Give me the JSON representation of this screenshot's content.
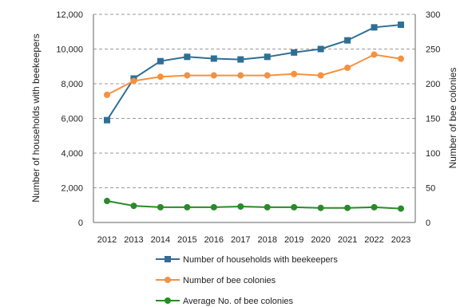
{
  "chart_data": {
    "type": "line",
    "title": "",
    "xlabel": "",
    "ylabel_left": "Number of households with beekeepers",
    "ylabel_right": "Number of bee colonies",
    "ylim_left": [
      0,
      12000
    ],
    "ylim_right": [
      0,
      300
    ],
    "yticks_left": [
      0,
      2000,
      4000,
      6000,
      8000,
      10000,
      12000
    ],
    "yticks_right": [
      0,
      50,
      100,
      150,
      200,
      250,
      300
    ],
    "yticks_left_labels": [
      "0",
      "2,000",
      "4,000",
      "6,000",
      "8,000",
      "10,000",
      "12,000"
    ],
    "yticks_right_labels": [
      "0",
      "50",
      "100",
      "150",
      "200",
      "250",
      "300"
    ],
    "grid": "horizontal-dashed",
    "legend_position": "bottom",
    "x": [
      "2012",
      "2013",
      "2014",
      "2015",
      "2016",
      "2017",
      "2018",
      "2019",
      "2020",
      "2021",
      "2022",
      "2023"
    ],
    "series": [
      {
        "name": "Number of households  with beekeepers",
        "axis": "left",
        "marker": "square",
        "color": "#2e6f95",
        "values": [
          5900,
          8300,
          9300,
          9550,
          9450,
          9400,
          9550,
          9800,
          10000,
          10500,
          11250,
          11400
        ]
      },
      {
        "name": "Number of bee colonies",
        "axis": "right",
        "marker": "circle",
        "color": "#f5913e",
        "values": [
          184,
          204,
          210,
          212,
          212,
          212,
          212,
          214,
          212,
          223,
          242,
          236
        ]
      },
      {
        "name": "Average No. of bee colonies",
        "axis": "right",
        "marker": "circle",
        "color": "#2a8a2a",
        "values": [
          31,
          24,
          22,
          22,
          22,
          23,
          22,
          22,
          21,
          21,
          22,
          20
        ]
      }
    ]
  }
}
